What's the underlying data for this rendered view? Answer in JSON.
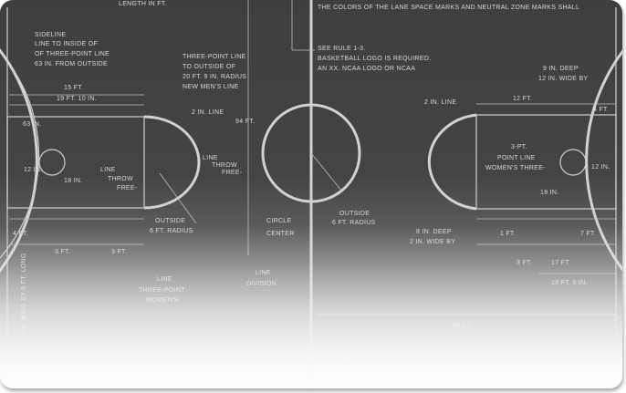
{
  "labels": {
    "length_top": "LENGTH IN FT.",
    "colors_note": "THE COLORS OF THE LANE SPACE MARKS AND NEUTRAL ZONE MARKS SHALL",
    "sideline_1": "SIDELINE",
    "sideline_2": "LINE TO INSIDE OF",
    "sideline_3": "OF THREE-POINT LINE",
    "sideline_4": "63 IN. FROM OUTSIDE",
    "three_pt_1": "THREE-POINT LINE",
    "three_pt_2": "TO OUTSIDE OF",
    "three_pt_3": "20 FT. 9 IN. RADIUS",
    "three_pt_4": "NEW MEN'S LINE",
    "rule_1": "SEE RULE 1-3.",
    "rule_2": "BASKETBALL LOGO IS REQUIRED.",
    "rule_3": "AN XX. NCAA LOGO OR NCAA",
    "nine_deep": "9 IN. DEEP",
    "twelve_wide": "12 IN. WIDE BY",
    "fifteen_ft_l": "15 FT.",
    "nineteen": "19 FT. 10 IN.",
    "twelve_ft_r": "12 FT.",
    "two_in_line_l": "2 IN. LINE",
    "two_in_line_r": "2 IN. LINE",
    "four_ft_r": "4 FT.",
    "sixty_three": "63 IN.",
    "twelve_in_l": "12 IN.",
    "eighteen_in": "18 IN.",
    "lane_1": "LINE",
    "lane_2": "THROW",
    "lane_3": "FREE-",
    "lane_4": "LINE",
    "lane_5": "THROW",
    "lane_6": "FREE-",
    "ninety_four": "94 FT.",
    "three_pt_right_1": "3-PT.",
    "three_pt_right_2": "POINT LINE",
    "three_pt_right_3": "WOMEN'S THREE-",
    "twelve_in_r": "12 IN.",
    "eighteen_in_r": "18 IN.",
    "outside_l": "OUTSIDE",
    "radius_l": "6 FT. RADIUS",
    "outside_c": "OUTSIDE",
    "radius_c": "6 FT. RADIUS",
    "circle": "CIRCLE",
    "center": "CENTER",
    "eight_deep": "8 IN. DEEP",
    "two_wide": "2 IN. WIDE BY",
    "four_ft_l": "4 FT.",
    "three_ft_l": "3 FT.",
    "three_ft_r": "3 FT.",
    "one_ft_r": "1 FT.",
    "seven_ft": "7 FT.",
    "three_ft_b": "3 FT.",
    "seventeen": "17 FT.",
    "nineteen_nine": "19 FT. 9 IN.",
    "left_line_1": "LINE",
    "left_line_2": "THREE-POINT",
    "left_line_3": "WOMEN'S",
    "division_1": "LINE",
    "division_2": "DIVISION",
    "fifty_ft": "50 FT.",
    "vert_left": "2 IN. WIDE BY 8 FT. LONG"
  }
}
